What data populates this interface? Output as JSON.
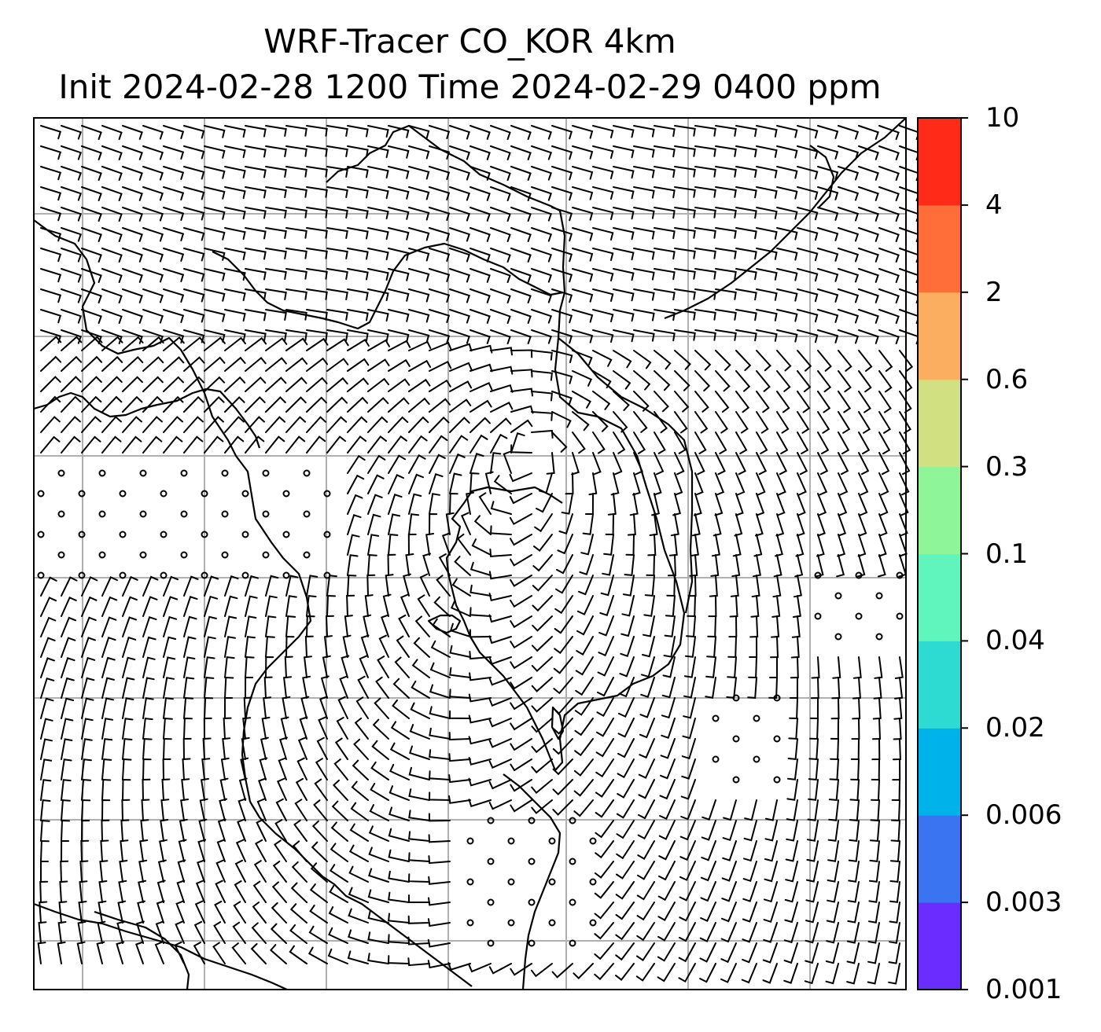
{
  "title": {
    "line1": "WRF-Tracer CO_KOR 4km",
    "line2": "Init 2024-02-28 1200 Time 2024-02-29 0400 ppm"
  },
  "colorbar": {
    "levels": [
      "0.001",
      "0.003",
      "0.006",
      "0.02",
      "0.04",
      "0.1",
      "0.3",
      "0.6",
      "2",
      "4",
      "10"
    ],
    "colors": [
      "#6a2cff",
      "#3a74f0",
      "#00b2ea",
      "#2ddbd2",
      "#5ff5bc",
      "#8ef598",
      "#d1e080",
      "#fbae60",
      "#ff6e38",
      "#ff2a18"
    ]
  },
  "map_style": {
    "gridline_color": "#b0b0b0",
    "coastline_color": "#000000",
    "wind_barb_color": "#000000",
    "calm_marker": "open-circle"
  }
}
